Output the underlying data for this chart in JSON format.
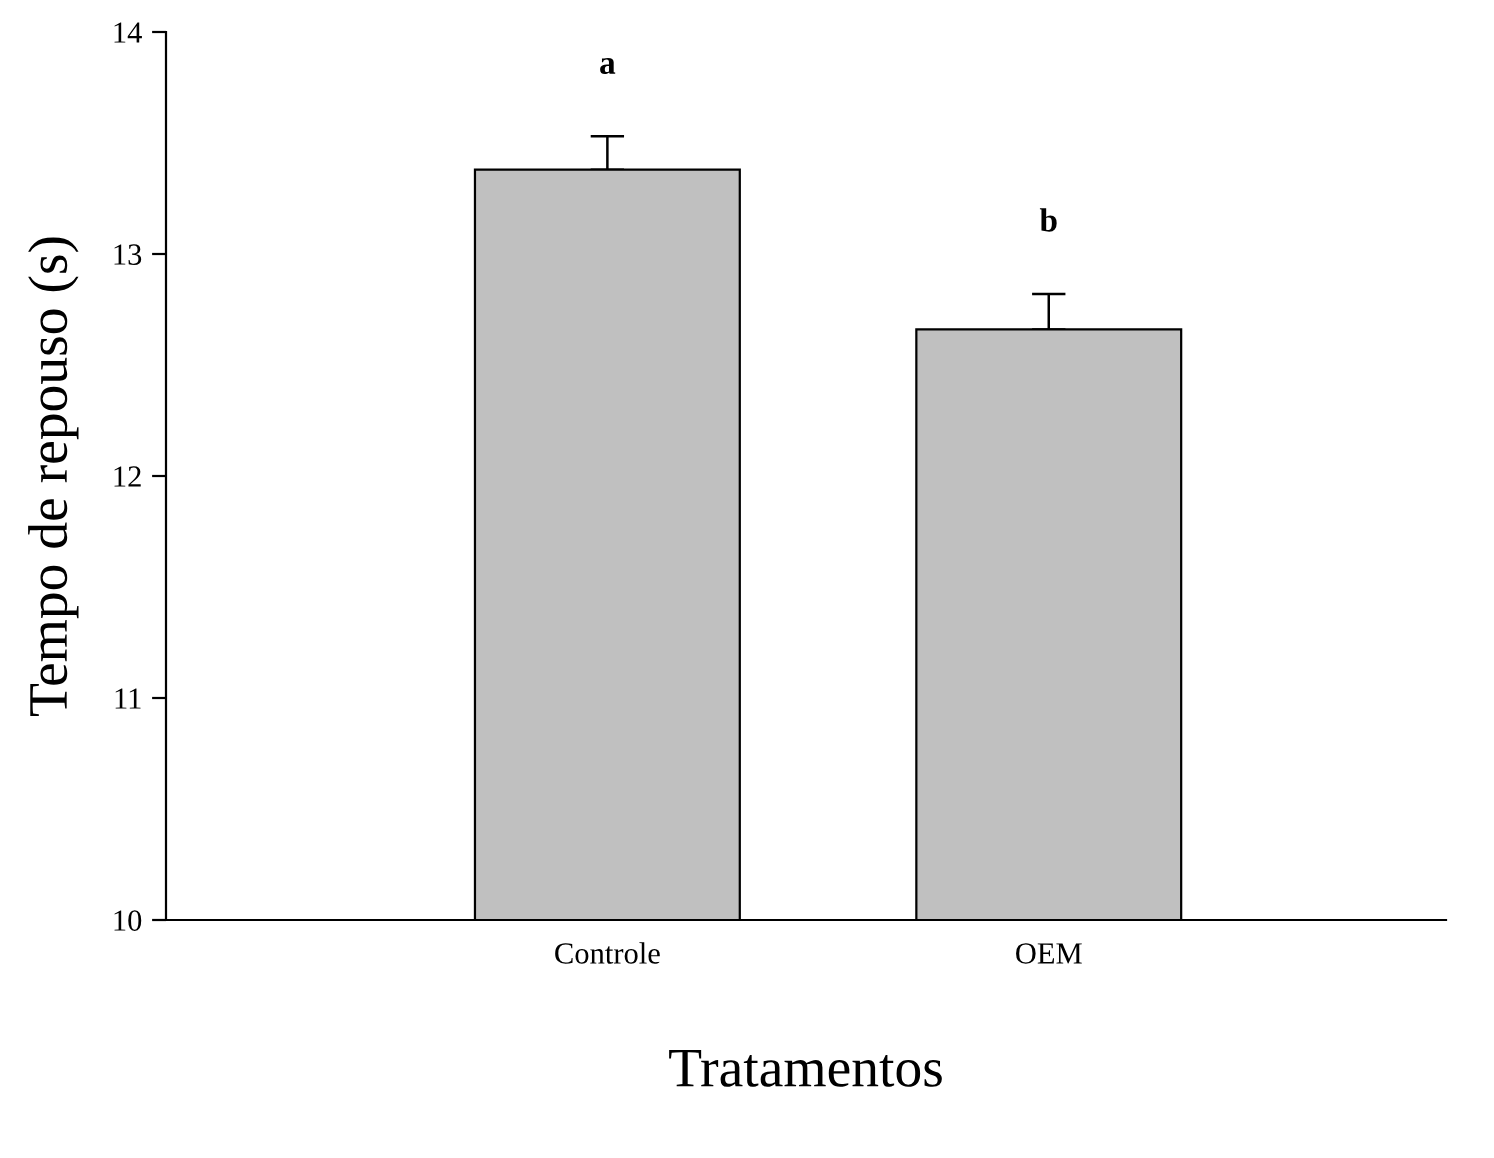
{
  "chart_data": {
    "type": "bar",
    "xlabel": "Tratamentos",
    "ylabel": "Tempo de repouso (s)",
    "categories": [
      "Controle",
      "OEM"
    ],
    "values": [
      13.38,
      12.66
    ],
    "color": "#c0c0c0",
    "errors": [
      [
        13.38,
        13.53
      ],
      [
        12.66,
        12.82
      ]
    ],
    "ylim": [
      10,
      14
    ],
    "yticks": [
      10,
      11,
      12,
      13,
      14
    ],
    "grid": false,
    "annotations": [
      "a",
      "b"
    ]
  }
}
